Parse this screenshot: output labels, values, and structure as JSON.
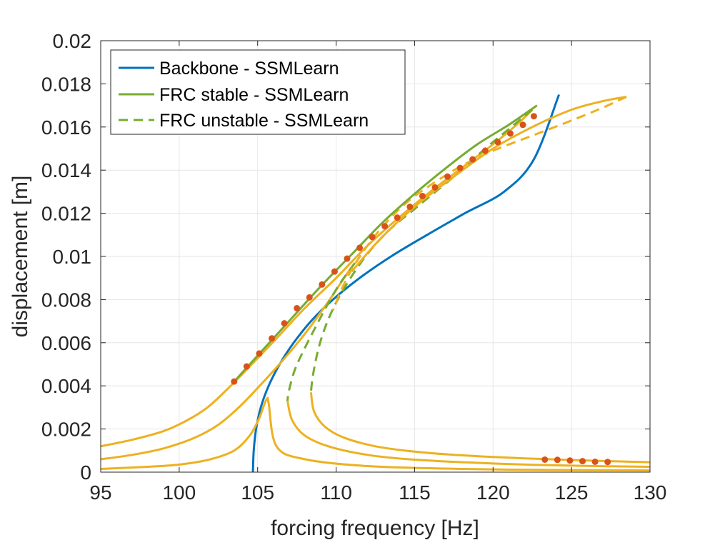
{
  "chart_data": {
    "type": "line",
    "xlabel": "forcing frequency [Hz]",
    "ylabel": "displacement [m]",
    "xlim": [
      95,
      130
    ],
    "ylim": [
      0,
      0.02
    ],
    "xticks": [
      "95",
      "100",
      "105",
      "110",
      "115",
      "120",
      "125",
      "130"
    ],
    "yticks": [
      "0",
      "0.002",
      "0.004",
      "0.006",
      "0.008",
      "0.01",
      "0.012",
      "0.014",
      "0.016",
      "0.018",
      "0.02"
    ],
    "grid": true,
    "legend_position": "top-left",
    "legend": [
      {
        "label": "Backbone - SSMLearn",
        "color": "#0072BD",
        "style": "solid"
      },
      {
        "label": "FRC stable - SSMLearn",
        "color": "#77AC30",
        "style": "solid"
      },
      {
        "label": "FRC unstable - SSMLearn",
        "color": "#77AC30",
        "style": "dashed"
      }
    ],
    "colors": {
      "backbone": "#0072BD",
      "ssmlearn": "#77AC30",
      "reference": "#EDB120",
      "markers": "#D95319"
    },
    "series": [
      {
        "name": "Backbone - SSMLearn",
        "color": "#0072BD",
        "dash": false,
        "x": [
          104.7,
          104.75,
          104.9,
          105.2,
          105.7,
          106.4,
          107.3,
          108.4,
          109.8,
          111.5,
          113.5,
          115.8,
          118.2,
          120.7,
          122.6,
          124.2
        ],
        "y": [
          0.0,
          0.001,
          0.002,
          0.003,
          0.004,
          0.005,
          0.006,
          0.007,
          0.008,
          0.009,
          0.01,
          0.011,
          0.012,
          0.013,
          0.0145,
          0.0175
        ]
      },
      {
        "color": "#EDB120",
        "dash": false,
        "x": [
          95,
          98,
          100,
          102,
          103.5,
          104.5,
          105.1,
          105.4,
          105.6,
          105.7,
          106.2,
          108,
          112,
          118,
          124,
          130
        ],
        "y": [
          0.00015,
          0.00025,
          0.00035,
          0.0006,
          0.001,
          0.0017,
          0.0025,
          0.0031,
          0.0034,
          0.0032,
          0.0012,
          0.0006,
          0.00028,
          0.00015,
          0.0001,
          8e-05
        ]
      },
      {
        "color": "#EDB120",
        "dash": false,
        "x": [
          95,
          97,
          99,
          101,
          102.5,
          103.8,
          105,
          106.5,
          108,
          109.5,
          110.6,
          111.2
        ],
        "y": [
          0.0006,
          0.0008,
          0.0011,
          0.0016,
          0.0022,
          0.003,
          0.0039,
          0.0051,
          0.0064,
          0.0079,
          0.0091,
          0.0097
        ]
      },
      {
        "color": "#77AC30",
        "dash": true,
        "x": [
          111.2,
          110.2,
          109.4,
          108.6,
          107.9,
          107.4,
          107.1,
          106.95,
          106.9
        ],
        "y": [
          0.0097,
          0.0087,
          0.0077,
          0.0066,
          0.0056,
          0.0048,
          0.0041,
          0.0036,
          0.0033
        ]
      },
      {
        "color": "#EDB120",
        "dash": false,
        "x": [
          106.9,
          107.2,
          108,
          109.5,
          112,
          115,
          120,
          125,
          130
        ],
        "y": [
          0.0033,
          0.0024,
          0.0017,
          0.0012,
          0.0008,
          0.00058,
          0.0004,
          0.0003,
          0.00025
        ]
      },
      {
        "color": "#EDB120",
        "dash": false,
        "x": [
          95,
          97,
          99,
          100.5,
          101.8,
          103,
          104.5,
          106.2,
          108,
          110,
          112,
          114,
          116,
          118,
          120,
          121.5,
          122.5
        ],
        "y": [
          0.0012,
          0.0015,
          0.0019,
          0.0024,
          0.003,
          0.0038,
          0.0049,
          0.0062,
          0.0076,
          0.009,
          0.0105,
          0.0118,
          0.013,
          0.0141,
          0.0152,
          0.0161,
          0.0168
        ]
      },
      {
        "color": "#77AC30",
        "dash": true,
        "x": [
          122.5,
          121,
          119.5,
          118,
          116.5,
          115,
          113.5,
          112.2,
          111.1,
          110.1,
          109.4,
          108.9,
          108.6,
          108.45,
          108.4
        ],
        "y": [
          0.0168,
          0.0159,
          0.015,
          0.014,
          0.0131,
          0.0122,
          0.0113,
          0.0103,
          0.0092,
          0.008,
          0.0069,
          0.0058,
          0.0048,
          0.0041,
          0.0037
        ]
      },
      {
        "color": "#EDB120",
        "dash": false,
        "x": [
          108.4,
          108.6,
          109.3,
          110.5,
          112.5,
          115,
          118,
          122,
          126,
          130
        ],
        "y": [
          0.0037,
          0.0028,
          0.0021,
          0.0016,
          0.0012,
          0.00095,
          0.00078,
          0.00064,
          0.00054,
          0.00046
        ]
      },
      {
        "color": "#EDB120",
        "dash": false,
        "x": [
          111,
          112.8,
          115,
          117.5,
          120,
          122.5,
          125,
          127,
          128.5
        ],
        "y": [
          0.0093,
          0.0108,
          0.0123,
          0.0137,
          0.015,
          0.016,
          0.0168,
          0.0172,
          0.0174
        ]
      },
      {
        "color": "#EDB120",
        "dash": true,
        "x": [
          128.5,
          127,
          125,
          122.5,
          120,
          118,
          116,
          114.5,
          113.1,
          111.9,
          111.0,
          110.3,
          109.8
        ],
        "y": [
          0.0174,
          0.0169,
          0.0163,
          0.0156,
          0.0149,
          0.0142,
          0.0133,
          0.0125,
          0.0115,
          0.0104,
          0.0094,
          0.0084,
          0.0075
        ]
      },
      {
        "color": "#77AC30",
        "dash": false,
        "x": [
          103.5,
          104.5,
          105.5,
          107,
          109,
          111,
          113,
          115,
          117,
          119,
          121,
          122.8
        ],
        "y": [
          0.0042,
          0.005,
          0.0058,
          0.007,
          0.0086,
          0.0101,
          0.0116,
          0.0129,
          0.0141,
          0.0152,
          0.0161,
          0.017
        ]
      }
    ],
    "markers": {
      "color": "#D95319",
      "x": [
        103.5,
        104.3,
        105.1,
        105.9,
        106.7,
        107.5,
        108.3,
        109.1,
        109.9,
        110.7,
        111.5,
        112.3,
        113.1,
        113.9,
        114.7,
        115.5,
        116.3,
        117.1,
        117.9,
        118.7,
        119.5,
        120.3,
        121.1,
        121.9,
        122.6,
        123.3,
        124.1,
        124.9,
        125.7,
        126.5,
        127.3
      ],
      "y": [
        0.0042,
        0.0049,
        0.0055,
        0.0062,
        0.0069,
        0.0076,
        0.0081,
        0.0087,
        0.0093,
        0.0099,
        0.0104,
        0.0109,
        0.0114,
        0.0118,
        0.0123,
        0.0128,
        0.0132,
        0.0137,
        0.0141,
        0.0145,
        0.0149,
        0.0153,
        0.0157,
        0.0161,
        0.0165,
        0.00058,
        0.00057,
        0.00054,
        0.00051,
        0.00048,
        0.00047
      ]
    }
  }
}
